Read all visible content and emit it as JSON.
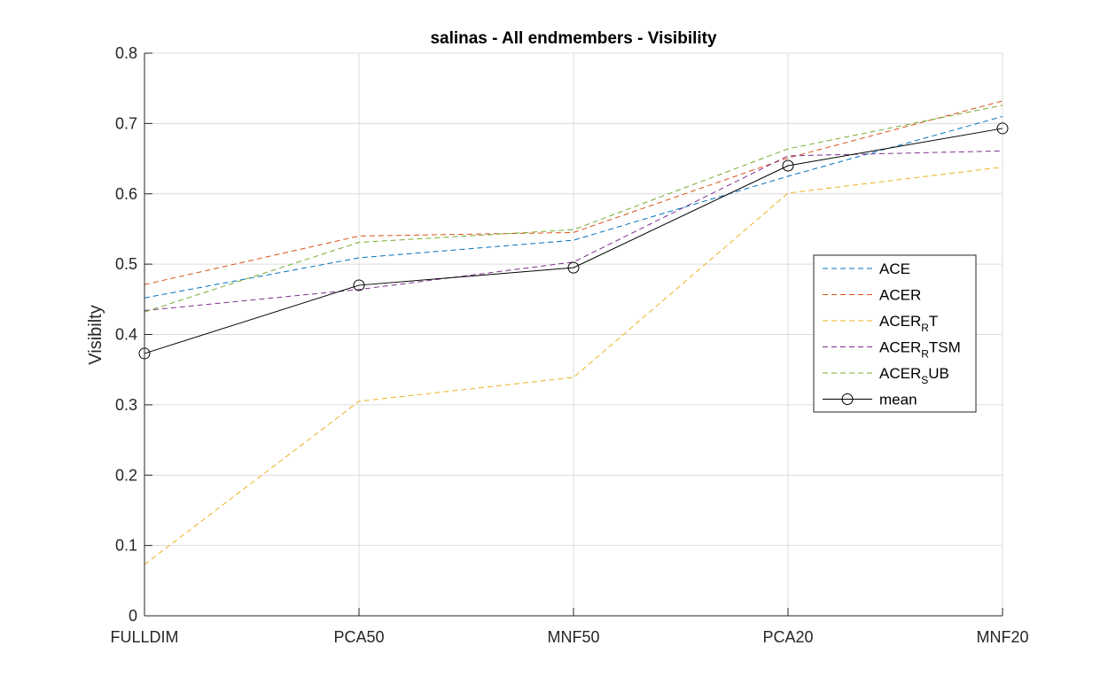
{
  "chart_data": {
    "type": "line",
    "title": "salinas - All endmembers - Visibility",
    "xlabel": "",
    "ylabel": "Visibilty",
    "categories": [
      "FULLDIM",
      "PCA50",
      "MNF50",
      "PCA20",
      "MNF20"
    ],
    "ylim": [
      0,
      0.8
    ],
    "yticks": [
      "0",
      "0.1",
      "0.2",
      "0.3",
      "0.4",
      "0.5",
      "0.6",
      "0.7",
      "0.8"
    ],
    "grid": true,
    "legend_position": "right",
    "series": [
      {
        "name": "ACE",
        "legend_base": "ACE",
        "legend_sub": "",
        "legend_tail": "",
        "color": "#0072BD",
        "style": "dashed",
        "values": [
          0.452,
          0.509,
          0.534,
          0.625,
          0.71
        ]
      },
      {
        "name": "ACER",
        "legend_base": "ACER",
        "legend_sub": "",
        "legend_tail": "",
        "color": "#D95319",
        "style": "dashed",
        "values": [
          0.471,
          0.54,
          0.545,
          0.651,
          0.732
        ]
      },
      {
        "name": "ACER_RT",
        "legend_base": "ACER",
        "legend_sub": "R",
        "legend_tail": "T",
        "color": "#EDB120",
        "style": "dashed",
        "values": [
          0.073,
          0.305,
          0.339,
          0.601,
          0.638
        ]
      },
      {
        "name": "ACER_RTSM",
        "legend_base": "ACER",
        "legend_sub": "R",
        "legend_tail": "TSM",
        "color": "#7E2F8E",
        "style": "dashed",
        "values": [
          0.434,
          0.464,
          0.503,
          0.654,
          0.661
        ]
      },
      {
        "name": "ACER_SUB",
        "legend_base": "ACER",
        "legend_sub": "S",
        "legend_tail": "UB",
        "color": "#77AC30",
        "style": "dashed",
        "values": [
          0.432,
          0.531,
          0.549,
          0.664,
          0.726
        ]
      },
      {
        "name": "mean",
        "legend_base": "mean",
        "legend_sub": "",
        "legend_tail": "",
        "color": "#000000",
        "style": "solid",
        "marker": "circle",
        "values": [
          0.373,
          0.47,
          0.495,
          0.64,
          0.693
        ]
      }
    ]
  }
}
